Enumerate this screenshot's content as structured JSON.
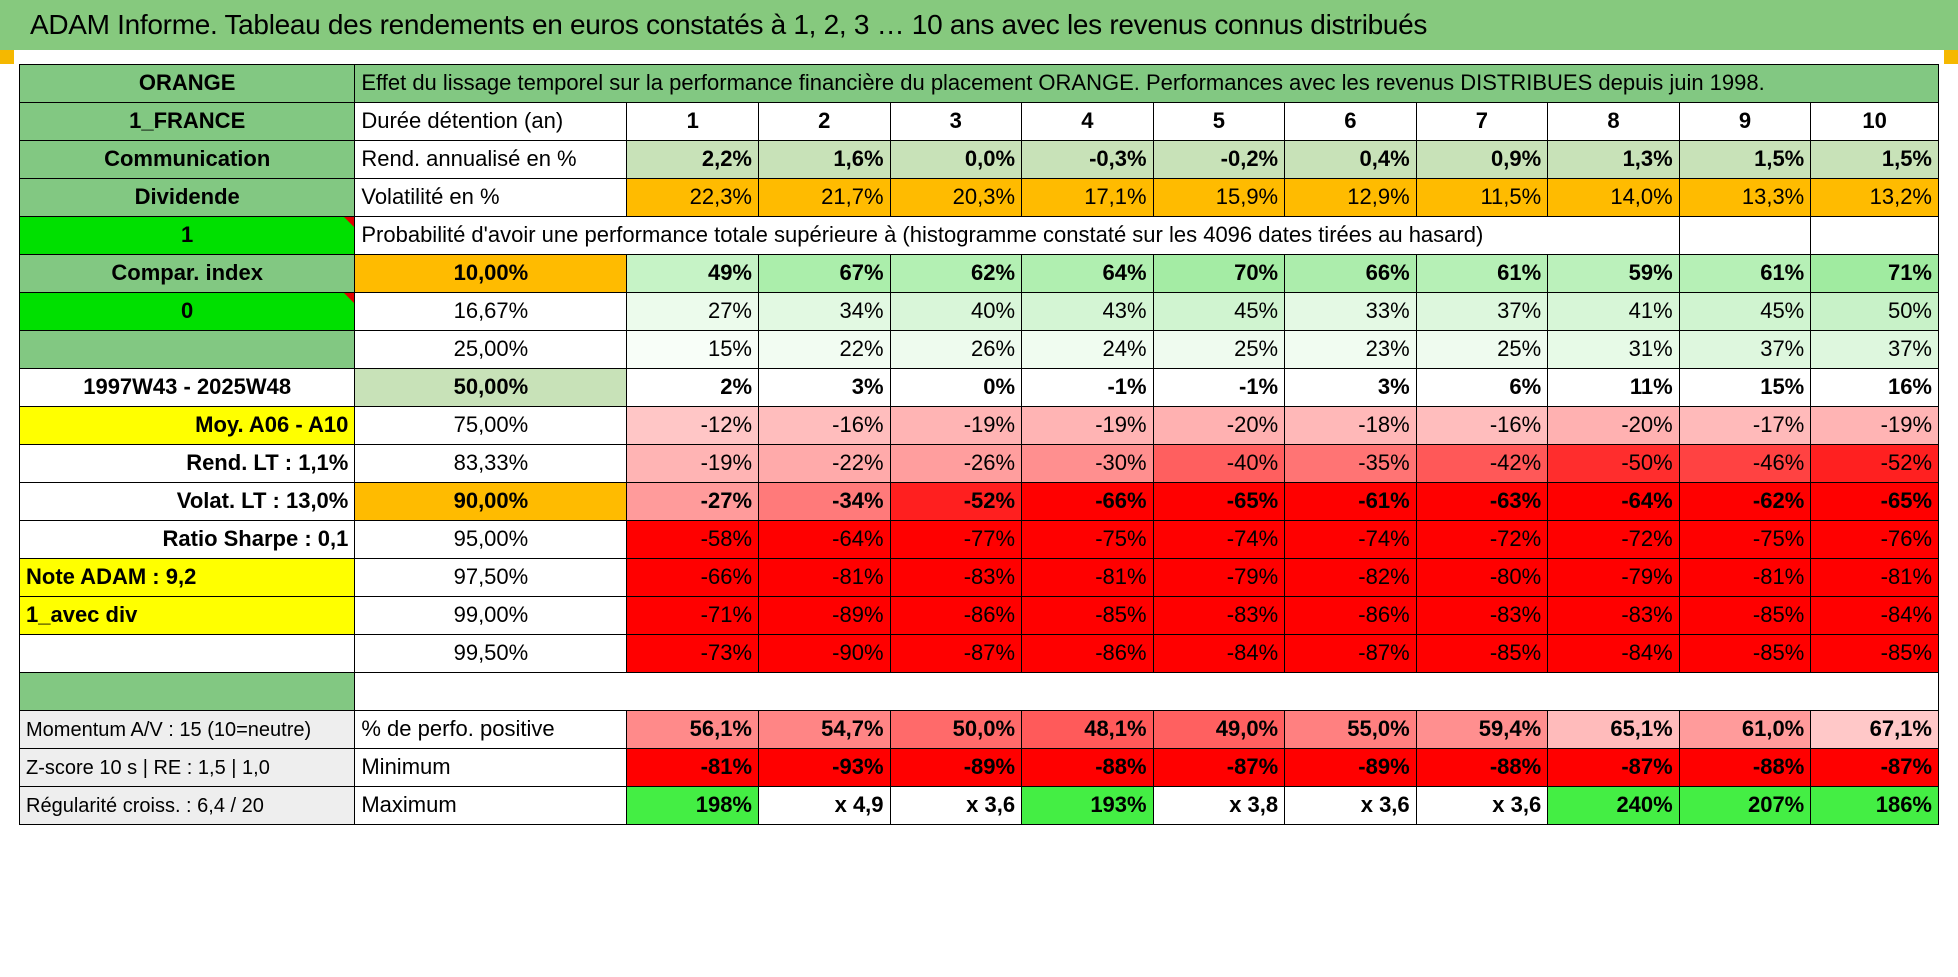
{
  "title": "ADAM Informe. Tableau des rendements en euros constatés à 1, 2, 3 … 10 ans avec les revenus connus distribués",
  "header": {
    "left": "ORANGE",
    "description": "Effet du lissage temporel sur la performance financière du placement ORANGE. Performances avec les revenus DISTRIBUES depuis juin 1998."
  },
  "side": {
    "country": "1_FRANCE",
    "sector": "Communication",
    "type": "Dividende",
    "code1": "1",
    "compar": "Compar. index",
    "code0": "0",
    "blank": "",
    "period": "1997W43 - 2025W48",
    "moy": "Moy. A06 - A10",
    "rend_lt": "Rend. LT :    1,1%",
    "volat_lt": "Volat. LT :    13,0%",
    "sharpe": "Ratio Sharpe :    0,1",
    "note": "Note ADAM : 9,2",
    "div": "1_avec div",
    "momentum": "Momentum A/V : 15 (10=neutre)",
    "zscore": "Z-score 10 s | RE : 1,5 | 1,0",
    "regularite": "Régularité croiss. : 6,4 / 20"
  },
  "labels": {
    "duree": "Durée détention (an)",
    "rend": "Rend. annualisé en %",
    "vol": "Volatilité en %",
    "prob": "Probabilité d'avoir une performance totale supérieure à (histogramme constaté sur les 4096 dates tirées au hasard)",
    "pos": "% de perfo. positive",
    "min": "Minimum",
    "max": "Maximum"
  },
  "durations": [
    "1",
    "2",
    "3",
    "4",
    "5",
    "6",
    "7",
    "8",
    "9",
    "10"
  ],
  "rend": [
    "2,2%",
    "1,6%",
    "0,0%",
    "-0,3%",
    "-0,2%",
    "0,4%",
    "0,9%",
    "1,3%",
    "1,5%",
    "1,5%"
  ],
  "vol": [
    "22,3%",
    "21,7%",
    "20,3%",
    "17,1%",
    "15,9%",
    "12,9%",
    "11,5%",
    "14,0%",
    "13,3%",
    "13,2%"
  ],
  "quantiles": [
    {
      "label": "10,00%",
      "values": [
        "49%",
        "67%",
        "62%",
        "64%",
        "70%",
        "66%",
        "61%",
        "59%",
        "61%",
        "71%"
      ],
      "colors": [
        "#c6f3c6",
        "#abeeab",
        "#b3f0b3",
        "#b0efb0",
        "#a4eca4",
        "#acedac",
        "#b6f0b6",
        "#bbf1bb",
        "#b6f0b6",
        "#a0eba0"
      ]
    },
    {
      "label": "16,67%",
      "values": [
        "27%",
        "34%",
        "40%",
        "43%",
        "45%",
        "33%",
        "37%",
        "41%",
        "45%",
        "50%"
      ],
      "colors": [
        "#ecfbec",
        "#e2f9e2",
        "#d9f6d9",
        "#d4f5d4",
        "#d0f4d0",
        "#e4f9e4",
        "#ddf7dd",
        "#d7f6d7",
        "#d0f4d0",
        "#c8f2c8"
      ]
    },
    {
      "label": "25,00%",
      "values": [
        "15%",
        "22%",
        "26%",
        "24%",
        "25%",
        "23%",
        "25%",
        "31%",
        "37%",
        "37%"
      ],
      "colors": [
        "#f8fef8",
        "#f2fcf2",
        "#eefbee",
        "#f0fcf0",
        "#effbef",
        "#f1fcf1",
        "#effbef",
        "#e7fae7",
        "#def7de",
        "#def7de"
      ]
    },
    {
      "label": "50,00%",
      "values": [
        "2%",
        "3%",
        "0%",
        "-1%",
        "-1%",
        "3%",
        "6%",
        "11%",
        "15%",
        "16%"
      ],
      "colors": [
        "#ffffff",
        "#ffffff",
        "#ffffff",
        "#ffffff",
        "#ffffff",
        "#ffffff",
        "#ffffff",
        "#ffffff",
        "#ffffff",
        "#ffffff"
      ]
    },
    {
      "label": "75,00%",
      "values": [
        "-12%",
        "-16%",
        "-19%",
        "-19%",
        "-20%",
        "-18%",
        "-16%",
        "-20%",
        "-17%",
        "-19%"
      ],
      "colors": [
        "#ffc6c6",
        "#ffbdbd",
        "#ffb4b4",
        "#ffb4b4",
        "#ffb1b1",
        "#ffb8b8",
        "#ffbdbd",
        "#ffb1b1",
        "#ffbaba",
        "#ffb4b4"
      ]
    },
    {
      "label": "83,33%",
      "values": [
        "-19%",
        "-22%",
        "-26%",
        "-30%",
        "-40%",
        "-35%",
        "-42%",
        "-50%",
        "-46%",
        "-52%"
      ],
      "colors": [
        "#ffb4b4",
        "#ffaaaa",
        "#ff9e9e",
        "#ff8f8f",
        "#ff5f5f",
        "#ff7474",
        "#ff5858",
        "#ff2d2d",
        "#ff4242",
        "#ff2020"
      ]
    },
    {
      "label": "90,00%",
      "values": [
        "-27%",
        "-34%",
        "-52%",
        "-66%",
        "-65%",
        "-61%",
        "-63%",
        "-64%",
        "-62%",
        "-65%"
      ],
      "colors": [
        "#ff9b9b",
        "#ff7a7a",
        "#ff1f1f",
        "#ff0000",
        "#ff0000",
        "#ff0000",
        "#ff0000",
        "#ff0000",
        "#ff0000",
        "#ff0000"
      ]
    },
    {
      "label": "95,00%",
      "values": [
        "-58%",
        "-64%",
        "-77%",
        "-75%",
        "-74%",
        "-74%",
        "-72%",
        "-72%",
        "-75%",
        "-76%"
      ],
      "colors": [
        "#ff0000",
        "#ff0000",
        "#ff0000",
        "#ff0000",
        "#ff0000",
        "#ff0000",
        "#ff0000",
        "#ff0000",
        "#ff0000",
        "#ff0000"
      ]
    },
    {
      "label": "97,50%",
      "values": [
        "-66%",
        "-81%",
        "-83%",
        "-81%",
        "-79%",
        "-82%",
        "-80%",
        "-79%",
        "-81%",
        "-81%"
      ],
      "colors": [
        "#ff0000",
        "#ff0000",
        "#ff0000",
        "#ff0000",
        "#ff0000",
        "#ff0000",
        "#ff0000",
        "#ff0000",
        "#ff0000",
        "#ff0000"
      ]
    },
    {
      "label": "99,00%",
      "values": [
        "-71%",
        "-89%",
        "-86%",
        "-85%",
        "-83%",
        "-86%",
        "-83%",
        "-83%",
        "-85%",
        "-84%"
      ],
      "colors": [
        "#ff0000",
        "#ff0000",
        "#ff0000",
        "#ff0000",
        "#ff0000",
        "#ff0000",
        "#ff0000",
        "#ff0000",
        "#ff0000",
        "#ff0000"
      ]
    },
    {
      "label": "99,50%",
      "values": [
        "-73%",
        "-90%",
        "-87%",
        "-86%",
        "-84%",
        "-87%",
        "-85%",
        "-84%",
        "-85%",
        "-85%"
      ],
      "colors": [
        "#ff0000",
        "#ff0000",
        "#ff0000",
        "#ff0000",
        "#ff0000",
        "#ff0000",
        "#ff0000",
        "#ff0000",
        "#ff0000",
        "#ff0000"
      ]
    }
  ],
  "positive": {
    "values": [
      "56,1%",
      "54,7%",
      "50,0%",
      "48,1%",
      "49,0%",
      "55,0%",
      "59,4%",
      "65,1%",
      "61,0%",
      "67,1%"
    ],
    "colors": [
      "#ff8a8a",
      "#ff8585",
      "#ff6a6a",
      "#ff5a5a",
      "#ff6060",
      "#ff8080",
      "#ff8f8f",
      "#ffbbbb",
      "#ff9b9b",
      "#ffc8c8"
    ]
  },
  "minimum": {
    "values": [
      "-81%",
      "-93%",
      "-89%",
      "-88%",
      "-87%",
      "-89%",
      "-88%",
      "-87%",
      "-88%",
      "-87%"
    ],
    "colors": [
      "#ff0000",
      "#ff0000",
      "#ff0000",
      "#ff0000",
      "#ff0000",
      "#ff0000",
      "#ff0000",
      "#ff0000",
      "#ff0000",
      "#ff0000"
    ]
  },
  "maximum": {
    "values": [
      "198%",
      "x 4,9",
      "x 3,6",
      "193%",
      "x 3,8",
      "x 3,6",
      "x 3,6",
      "240%",
      "207%",
      "186%"
    ],
    "colors": [
      "#44ee44",
      "#ffffff",
      "#ffffff",
      "#44ee44",
      "#ffffff",
      "#ffffff",
      "#ffffff",
      "#44ee44",
      "#44ee44",
      "#44ee44"
    ]
  },
  "colors": {
    "header_green": "#82c882",
    "lime": "#00e000",
    "yellow": "#ffff00",
    "orange": "#ffbb00",
    "red": "#ff0000"
  }
}
